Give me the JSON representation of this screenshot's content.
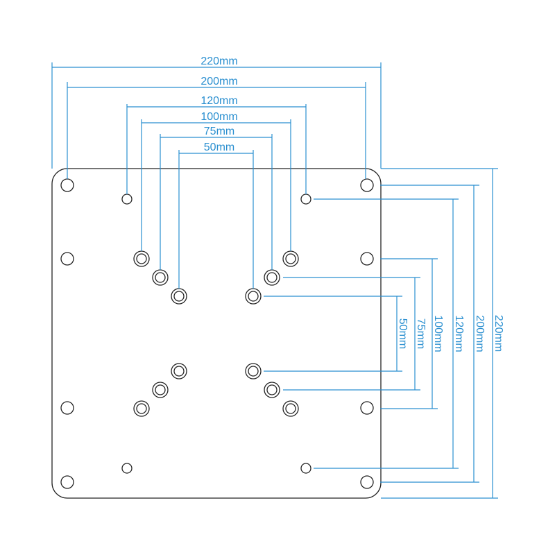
{
  "accent_color": "#2a8fd0",
  "top_dimensions": [
    {
      "id": "220",
      "label": "220mm"
    },
    {
      "id": "200",
      "label": "200mm"
    },
    {
      "id": "120",
      "label": "120mm"
    },
    {
      "id": "100",
      "label": "100mm"
    },
    {
      "id": "75",
      "label": "75mm"
    },
    {
      "id": "50",
      "label": "50mm"
    }
  ],
  "side_dimensions": [
    {
      "id": "50",
      "label": "50mm"
    },
    {
      "id": "75",
      "label": "75mm"
    },
    {
      "id": "100",
      "label": "100mm"
    },
    {
      "id": "120",
      "label": "120mm"
    },
    {
      "id": "200",
      "label": "200mm"
    },
    {
      "id": "220",
      "label": "220mm"
    }
  ]
}
